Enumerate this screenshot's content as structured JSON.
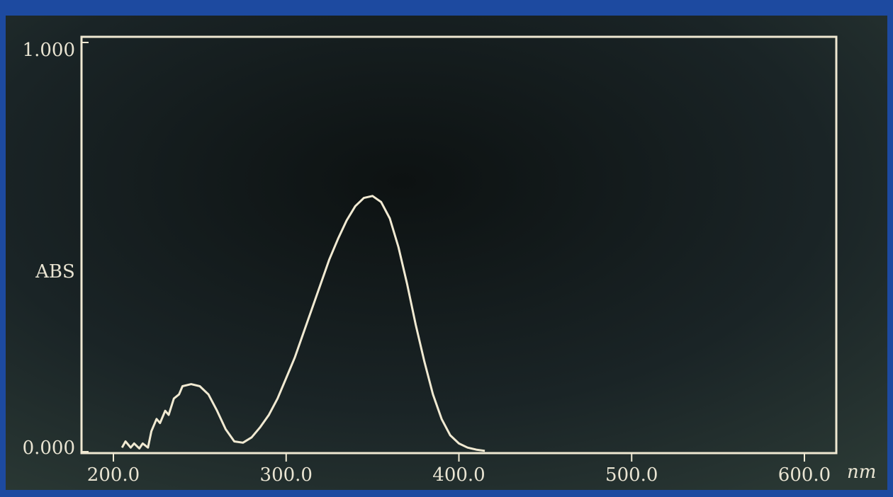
{
  "chart_data": {
    "type": "line",
    "y_label": "ABS",
    "x_label": "nm",
    "x": [
      205,
      207,
      210,
      212,
      215,
      217,
      220,
      222,
      225,
      227,
      230,
      232,
      235,
      238,
      240,
      245,
      250,
      255,
      260,
      265,
      270,
      275,
      280,
      285,
      290,
      295,
      300,
      305,
      310,
      315,
      320,
      325,
      330,
      335,
      340,
      345,
      350,
      355,
      360,
      365,
      370,
      375,
      380,
      385,
      390,
      395,
      400,
      405,
      410,
      415
    ],
    "series": [
      {
        "color": "#f1ead2",
        "values": [
          0.01,
          0.025,
          0.01,
          0.02,
          0.008,
          0.02,
          0.01,
          0.05,
          0.08,
          0.07,
          0.1,
          0.09,
          0.13,
          0.14,
          0.16,
          0.165,
          0.16,
          0.14,
          0.1,
          0.055,
          0.025,
          0.022,
          0.035,
          0.06,
          0.09,
          0.13,
          0.18,
          0.23,
          0.29,
          0.35,
          0.41,
          0.47,
          0.52,
          0.565,
          0.6,
          0.62,
          0.625,
          0.61,
          0.57,
          0.5,
          0.41,
          0.31,
          0.22,
          0.14,
          0.08,
          0.04,
          0.02,
          0.01,
          0.005,
          0.002
        ]
      }
    ],
    "xlim": [
      200,
      600
    ],
    "xticks": [
      {
        "value": 200,
        "label": "200.0"
      },
      {
        "value": 300,
        "label": "300.0"
      },
      {
        "value": 400,
        "label": "400.0"
      },
      {
        "value": 500,
        "label": "500.0"
      },
      {
        "value": 600,
        "label": "600.0"
      }
    ],
    "ylim": [
      0,
      1
    ],
    "yticks": [
      {
        "value": 0,
        "label": "0.000"
      },
      {
        "value": 1,
        "label": "1.000"
      }
    ]
  }
}
